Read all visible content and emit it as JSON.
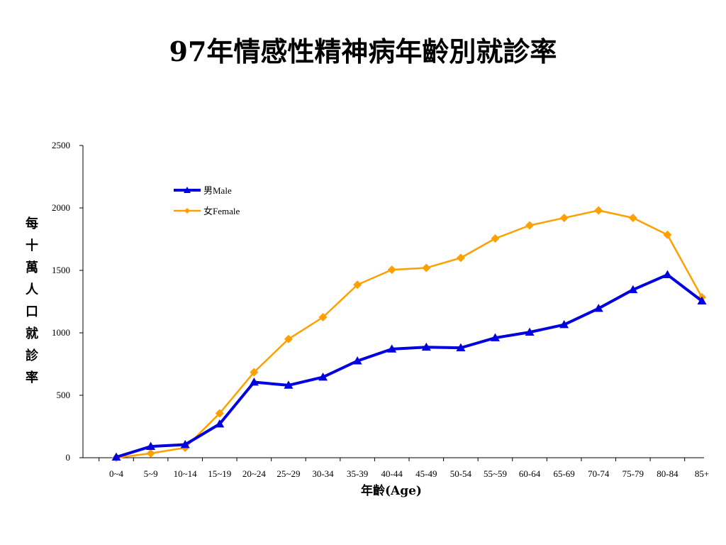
{
  "chart_data": {
    "type": "line",
    "title": "97年情感性精神病年齡別就診率",
    "xlabel": "年齡(Age)",
    "ylabel": "每十萬人口就診率",
    "ylim": [
      0,
      2500
    ],
    "yticks": [
      0,
      500,
      1000,
      1500,
      2000,
      2500
    ],
    "categories": [
      "0~4",
      "5~9",
      "10~14",
      "15~19",
      "20~24",
      "25~29",
      "30-34",
      "35-39",
      "40-44",
      "45-49",
      "50-54",
      "55~59",
      "60-64",
      "65-69",
      "70-74",
      "75-79",
      "80-84",
      "85+"
    ],
    "series": [
      {
        "name": "男Male",
        "color": "#0000e0",
        "marker": "triangle",
        "values": [
          5,
          90,
          105,
          270,
          605,
          580,
          645,
          775,
          870,
          885,
          880,
          960,
          1005,
          1065,
          1195,
          1345,
          1465,
          1255
        ]
      },
      {
        "name": "女Female",
        "color": "#ffa000",
        "marker": "diamond",
        "values": [
          0,
          35,
          80,
          355,
          685,
          950,
          1125,
          1385,
          1505,
          1520,
          1600,
          1755,
          1860,
          1920,
          1980,
          1920,
          1785,
          1285
        ]
      }
    ],
    "legend": "top-left"
  }
}
